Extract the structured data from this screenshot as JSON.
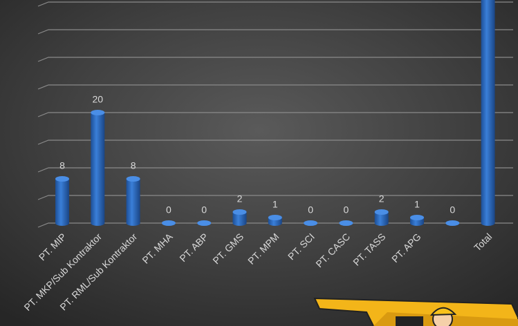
{
  "chart_data": {
    "type": "bar",
    "categories": [
      "PT. MIP",
      "PT. MKP/Sub Kontraktor",
      "PT. RML/Sub Kontraktor",
      "PT. MHA",
      "PT. ABP",
      "PT. GMS",
      "PT. MPM",
      "PT. SCI",
      "PT. CASC",
      "PT. TASS",
      "PT. APG",
      null,
      "Total"
    ],
    "values": [
      8,
      20,
      8,
      0,
      0,
      2,
      1,
      0,
      0,
      2,
      1,
      0,
      42
    ],
    "color": "#2f6fc6",
    "ylim": [
      0,
      40
    ],
    "yticks": [
      0,
      5,
      10,
      15,
      20,
      25,
      30,
      35,
      40
    ],
    "grid": true
  }
}
